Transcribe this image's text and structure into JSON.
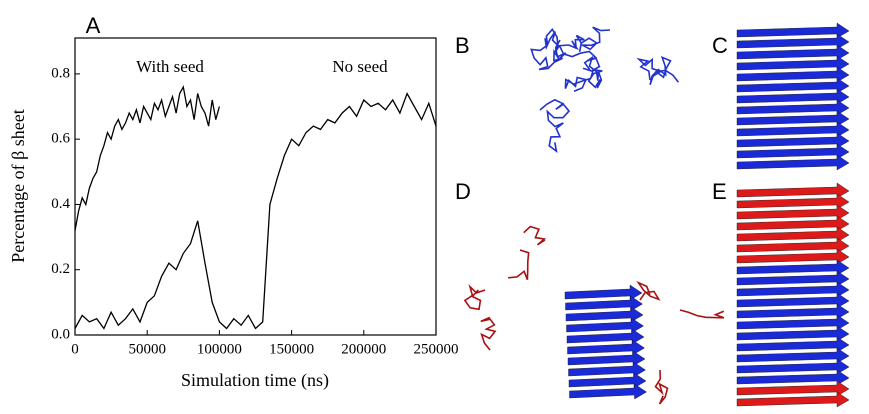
{
  "chart_data": {
    "type": "line",
    "panel_label": "A",
    "xlabel": "Simulation time (ns)",
    "ylabel": "Percentage of β sheet",
    "xlim": [
      0,
      250000
    ],
    "ylim": [
      0,
      0.91
    ],
    "xticks": [
      0,
      50000,
      100000,
      150000,
      200000,
      250000
    ],
    "yticks": [
      {
        "value": 0,
        "label": "0.0"
      },
      0.2,
      0.4,
      0.6,
      0.8
    ],
    "series": [
      {
        "name": "With seed",
        "color": "#000000",
        "x": [
          0,
          2500,
          5000,
          7500,
          10000,
          12500,
          15000,
          17500,
          20000,
          22500,
          25000,
          27500,
          30000,
          32500,
          35000,
          37500,
          40000,
          42500,
          45000,
          47500,
          50000,
          52500,
          55000,
          57500,
          60000,
          62500,
          65000,
          67500,
          70000,
          72500,
          75000,
          77500,
          80000,
          82500,
          85000,
          87500,
          90000,
          92500,
          95000,
          97500,
          100000
        ],
        "values": [
          0.32,
          0.38,
          0.42,
          0.4,
          0.45,
          0.48,
          0.5,
          0.55,
          0.58,
          0.62,
          0.6,
          0.64,
          0.66,
          0.63,
          0.65,
          0.68,
          0.66,
          0.69,
          0.65,
          0.7,
          0.68,
          0.66,
          0.71,
          0.69,
          0.72,
          0.67,
          0.7,
          0.73,
          0.68,
          0.74,
          0.76,
          0.7,
          0.72,
          0.66,
          0.74,
          0.7,
          0.68,
          0.64,
          0.72,
          0.66,
          0.7
        ]
      },
      {
        "name": "No seed",
        "color": "#000000",
        "x": [
          0,
          5000,
          10000,
          15000,
          20000,
          25000,
          30000,
          35000,
          40000,
          45000,
          50000,
          55000,
          60000,
          65000,
          70000,
          75000,
          80000,
          85000,
          90000,
          95000,
          100000,
          105000,
          110000,
          115000,
          120000,
          125000,
          130000,
          135000,
          140000,
          145000,
          150000,
          155000,
          160000,
          165000,
          170000,
          175000,
          180000,
          185000,
          190000,
          195000,
          200000,
          205000,
          210000,
          215000,
          220000,
          225000,
          230000,
          235000,
          240000,
          245000,
          250000
        ],
        "values": [
          0.02,
          0.06,
          0.04,
          0.05,
          0.02,
          0.07,
          0.03,
          0.05,
          0.08,
          0.04,
          0.1,
          0.12,
          0.18,
          0.22,
          0.2,
          0.25,
          0.28,
          0.35,
          0.22,
          0.1,
          0.04,
          0.02,
          0.05,
          0.03,
          0.06,
          0.02,
          0.04,
          0.4,
          0.48,
          0.55,
          0.6,
          0.58,
          0.62,
          0.64,
          0.63,
          0.66,
          0.65,
          0.68,
          0.7,
          0.67,
          0.72,
          0.7,
          0.71,
          0.69,
          0.72,
          0.68,
          0.74,
          0.7,
          0.66,
          0.71,
          0.64
        ]
      }
    ]
  },
  "panels": {
    "labels": [
      "B",
      "C",
      "D",
      "E"
    ]
  }
}
